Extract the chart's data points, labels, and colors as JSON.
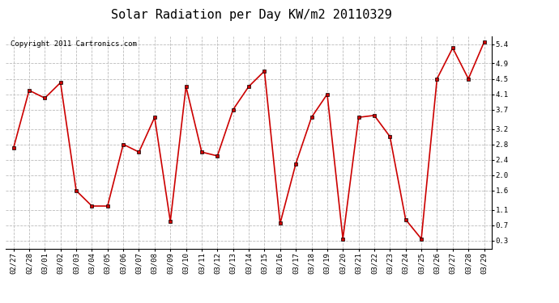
{
  "title": "Solar Radiation per Day KW/m2 20110329",
  "copyright": "Copyright 2011 Cartronics.com",
  "dates": [
    "02/27",
    "02/28",
    "03/01",
    "03/02",
    "03/03",
    "03/04",
    "03/05",
    "03/06",
    "03/07",
    "03/08",
    "03/09",
    "03/10",
    "03/11",
    "03/12",
    "03/13",
    "03/14",
    "03/15",
    "03/16",
    "03/17",
    "03/18",
    "03/19",
    "03/20",
    "03/21",
    "03/22",
    "03/23",
    "03/24",
    "03/25",
    "03/26",
    "03/27",
    "03/28",
    "03/29"
  ],
  "values": [
    2.7,
    4.2,
    4.0,
    4.4,
    1.6,
    1.2,
    1.2,
    2.8,
    2.6,
    3.5,
    0.8,
    4.3,
    2.6,
    2.5,
    3.7,
    4.3,
    4.7,
    0.75,
    2.3,
    3.5,
    4.1,
    0.35,
    3.5,
    3.55,
    3.0,
    0.85,
    0.35,
    4.5,
    5.3,
    4.5,
    5.45
  ],
  "line_color": "#cc0000",
  "marker_color": "#cc0000",
  "bg_color": "#ffffff",
  "grid_color": "#bbbbbb",
  "ylim_min": 0.1,
  "ylim_max": 5.6,
  "yticks": [
    0.3,
    0.7,
    1.1,
    1.6,
    2.0,
    2.4,
    2.8,
    3.2,
    3.7,
    4.1,
    4.5,
    4.9,
    5.4
  ],
  "title_fontsize": 11,
  "copyright_fontsize": 6.5,
  "tick_fontsize": 6.5
}
